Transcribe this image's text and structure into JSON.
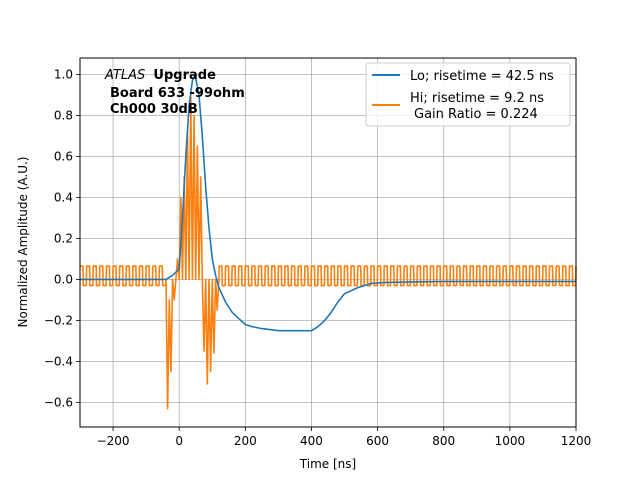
{
  "chart_data": {
    "type": "line",
    "title": "",
    "xlabel": "Time [ns]",
    "ylabel": "Normalized Amplitude (A.U.)",
    "xlim": [
      -300,
      1200
    ],
    "ylim": [
      -0.72,
      1.08
    ],
    "grid": true,
    "legend_placement": "top-right",
    "xticks": [
      -200,
      0,
      200,
      400,
      600,
      800,
      1000,
      1200
    ],
    "xtick_labels": [
      "−200",
      "0",
      "200",
      "400",
      "600",
      "800",
      "1000",
      "1200"
    ],
    "yticks": [
      -0.6,
      -0.4,
      -0.2,
      0.0,
      0.2,
      0.4,
      0.6,
      0.8,
      1.0
    ],
    "ytick_labels": [
      "−0.6",
      "−0.4",
      "−0.2",
      "0.0",
      "0.2",
      "0.4",
      "0.6",
      "0.8",
      "1.0"
    ],
    "annotation": {
      "italic": "ATLAS",
      "bold_first": "Upgrade",
      "lines": [
        "Board 633 -99ohm",
        "Ch000 30dB"
      ]
    },
    "series": [
      {
        "name": "Lo; risetime = 42.5 ns",
        "color": "#1f77b4",
        "x": [
          -300,
          -40,
          -20,
          0,
          10,
          20,
          30,
          40,
          45,
          50,
          60,
          70,
          80,
          90,
          100,
          110,
          120,
          140,
          160,
          180,
          200,
          220,
          250,
          300,
          350,
          400,
          420,
          440,
          460,
          480,
          500,
          540,
          580,
          620,
          700,
          800,
          900,
          1000,
          1100,
          1200
        ],
        "y": [
          0.0,
          0.0,
          0.02,
          0.05,
          0.3,
          0.6,
          0.85,
          0.97,
          0.99,
          0.98,
          0.9,
          0.7,
          0.45,
          0.25,
          0.1,
          0.02,
          -0.04,
          -0.11,
          -0.16,
          -0.19,
          -0.22,
          -0.23,
          -0.24,
          -0.25,
          -0.25,
          -0.25,
          -0.23,
          -0.2,
          -0.16,
          -0.11,
          -0.07,
          -0.04,
          -0.02,
          -0.015,
          -0.012,
          -0.01,
          -0.01,
          -0.01,
          -0.01,
          -0.01
        ]
      },
      {
        "name": "Hi; risetime = 9.2 ns",
        "name_line2": "Gain Ratio = 0.224",
        "color": "#ff7f0e",
        "osc_period_ns": 20,
        "osc_low": -0.03,
        "osc_high": 0.065,
        "spikes_x": [
          -40,
          -35,
          -30,
          -25,
          -20,
          -15,
          -10,
          -5,
          0,
          5,
          10,
          15,
          20,
          25,
          30,
          35,
          40,
          45,
          50,
          55,
          60,
          65,
          70,
          75,
          80,
          85,
          90,
          95,
          100,
          105,
          110,
          115,
          120
        ],
        "spikes_y": [
          0.0,
          -0.63,
          -0.1,
          -0.45,
          0.0,
          -0.1,
          0.0,
          0.1,
          0.0,
          0.4,
          0.0,
          0.5,
          0.0,
          0.72,
          0.0,
          0.9,
          0.0,
          0.8,
          0.0,
          0.65,
          0.0,
          0.5,
          0.0,
          -0.35,
          0.0,
          -0.51,
          0.0,
          -0.45,
          0.0,
          -0.36,
          0.0,
          -0.15,
          0.0
        ]
      }
    ]
  }
}
